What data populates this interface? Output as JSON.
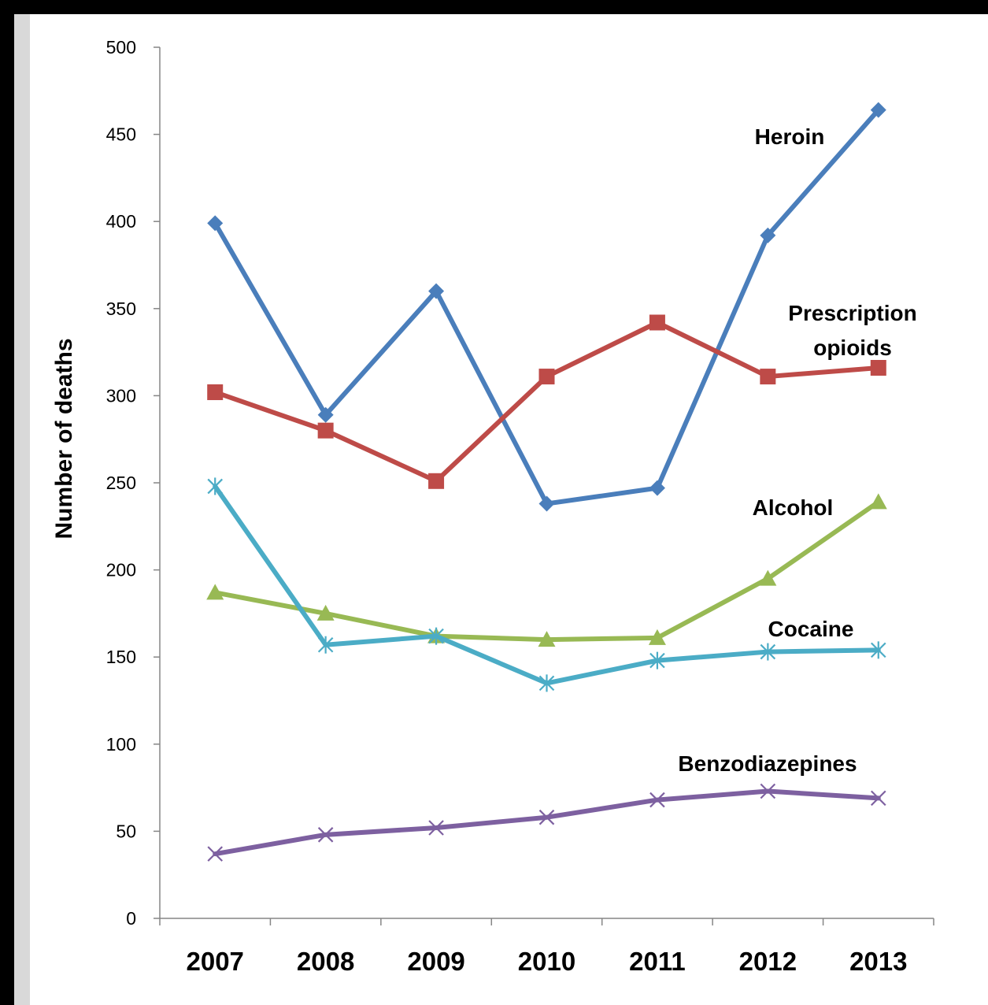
{
  "chart_data": {
    "type": "line",
    "title": "",
    "xlabel": "",
    "ylabel": "Number of deaths",
    "categories": [
      "2007",
      "2008",
      "2009",
      "2010",
      "2011",
      "2012",
      "2013"
    ],
    "ylim": [
      0,
      500
    ],
    "yticks": [
      "0",
      "50",
      "100",
      "150",
      "200",
      "250",
      "300",
      "350",
      "400",
      "450",
      "500"
    ],
    "grid": false,
    "series": [
      {
        "name": "Heroin",
        "color": "#4a7ebb",
        "marker": "diamond",
        "values": [
          399,
          289,
          360,
          238,
          247,
          392,
          464
        ]
      },
      {
        "name": "Prescription opioids",
        "color": "#be4b48",
        "marker": "square",
        "values": [
          302,
          280,
          251,
          311,
          342,
          311,
          316
        ]
      },
      {
        "name": "Alcohol",
        "color": "#98b954",
        "marker": "triangle",
        "values": [
          187,
          175,
          162,
          160,
          161,
          195,
          239
        ]
      },
      {
        "name": "Cocaine",
        "color": "#4bacc6",
        "marker": "asterisk",
        "values": [
          248,
          157,
          162,
          135,
          148,
          153,
          154
        ]
      },
      {
        "name": "Benzodiazepines",
        "color": "#7d60a0",
        "marker": "x",
        "values": [
          37,
          48,
          52,
          58,
          68,
          73,
          69
        ]
      }
    ],
    "series_labels": [
      {
        "lines": [
          "Heroin"
        ]
      },
      {
        "lines": [
          "Prescription",
          "opioids"
        ]
      },
      {
        "lines": [
          "Alcohol"
        ]
      },
      {
        "lines": [
          "Cocaine"
        ]
      },
      {
        "lines": [
          "Benzodiazepines"
        ]
      }
    ]
  }
}
